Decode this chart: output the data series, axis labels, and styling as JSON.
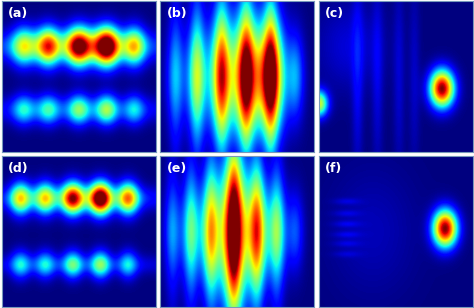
{
  "panels": [
    "a",
    "b",
    "c",
    "d",
    "e",
    "f"
  ],
  "label_color": "white",
  "label_fontsize": 9,
  "border_color": "#7799BB",
  "wspace": 0.03,
  "hspace": 0.03
}
